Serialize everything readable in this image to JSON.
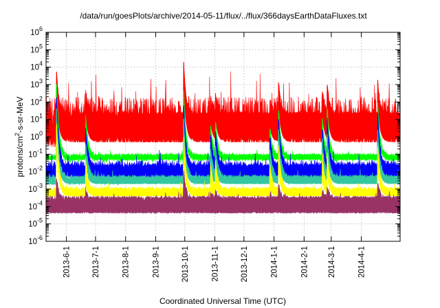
{
  "chart_data": {
    "type": "line",
    "title": "/data/run/goesPlots/archive/2014-05-11/flux/../flux/366daysEarthDataFluxes.txt",
    "xlabel": "Coordinated Universal Time (UTC)",
    "ylabel": {
      "base": "protons/cm",
      "sup": "2",
      "rest": "-s-sr-MeV"
    },
    "yscale": "log",
    "ylim_exp": [
      -6,
      6
    ],
    "y_tick_labels": [
      {
        "base": "10",
        "exp": "-6"
      },
      {
        "base": "10",
        "exp": "-5"
      },
      {
        "base": "10",
        "exp": "-4"
      },
      {
        "base": "10",
        "exp": "-3"
      },
      {
        "base": "10",
        "exp": "-2"
      },
      {
        "base": "10",
        "exp": "-1"
      },
      {
        "base": "10",
        "exp": "0"
      },
      {
        "base": "10",
        "exp": "1"
      },
      {
        "base": "10",
        "exp": "2"
      },
      {
        "base": "10",
        "exp": "3"
      },
      {
        "base": "10",
        "exp": "4"
      },
      {
        "base": "10",
        "exp": "5"
      },
      {
        "base": "10",
        "exp": "6"
      }
    ],
    "xlim": [
      "2013-05-11",
      "2014-05-11"
    ],
    "x_ticks": [
      "2013-6-1",
      "2013-7-1",
      "2013-8-1",
      "2013-9-1",
      "2013-10-1",
      "2013-11-1",
      "2013-12-1",
      "2014-1-1",
      "2014-2-1",
      "2014-3-1",
      "2014-4-1"
    ],
    "grid": true,
    "events": [
      "2013-05-22",
      "2013-06-21",
      "2013-09-30",
      "2013-10-28",
      "2013-11-02",
      "2013-12-28",
      "2014-01-06",
      "2014-02-20",
      "2014-02-25",
      "2014-04-18"
    ],
    "series": [
      {
        "color": "#ff0000",
        "baseline_log10": 1.3,
        "noise_log10": 1.0,
        "floor_log10": -0.3,
        "peaks_log10": [
          3.6,
          2.6,
          4.2,
          2.2,
          2.4,
          2.0,
          3.0,
          2.6,
          3.0,
          3.2
        ]
      },
      {
        "color": "#00ff00",
        "baseline_log10": -1.1,
        "noise_log10": 0.12,
        "floor_log10": -1.3,
        "peaks_log10": [
          3.0,
          1.2,
          2.6,
          0.5,
          0.8,
          0.5,
          1.5,
          1.0,
          1.6,
          2.0
        ]
      },
      {
        "color": "#0000ff",
        "baseline_log10": -1.7,
        "noise_log10": 0.35,
        "floor_log10": -2.3,
        "peaks_log10": [
          2.3,
          0.5,
          1.8,
          0.0,
          0.3,
          0.0,
          1.0,
          0.5,
          1.0,
          1.4
        ]
      },
      {
        "color": "#33c8a0",
        "baseline_log10": -2.35,
        "noise_log10": 0.18,
        "floor_log10": -2.7,
        "peaks_log10": [
          1.5,
          -0.3,
          1.0,
          -0.7,
          -0.5,
          -0.7,
          0.3,
          -0.2,
          0.2,
          0.5
        ]
      },
      {
        "color": "#ffff00",
        "baseline_log10": -3.05,
        "noise_log10": 0.18,
        "floor_log10": -3.4,
        "peaks_log10": [
          0.6,
          -1.3,
          0.0,
          -1.6,
          -1.4,
          -1.6,
          -0.6,
          -1.0,
          -0.8,
          -0.5
        ]
      },
      {
        "color": "#993366",
        "baseline_log10": -3.55,
        "noise_log10": 0.15,
        "floor_log10": -4.35,
        "peaks_log10": [
          -2.5,
          -3.0,
          -2.0,
          -3.2,
          -3.1,
          -3.2,
          -2.8,
          -3.0,
          -2.8,
          -2.6
        ]
      }
    ]
  }
}
